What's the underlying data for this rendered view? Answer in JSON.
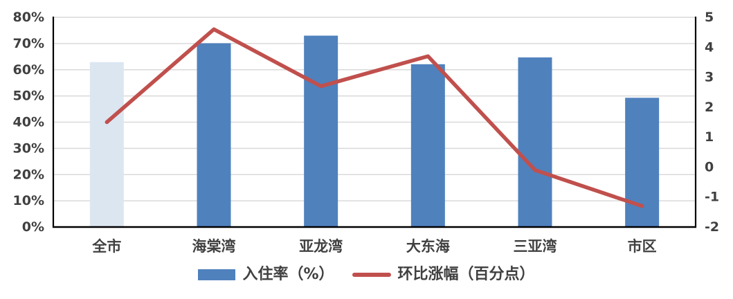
{
  "chart_data": {
    "type": "bar+line combo",
    "categories": [
      "全市",
      "海棠湾",
      "亚龙湾",
      "大东海",
      "三亚湾",
      "市区"
    ],
    "series": [
      {
        "name": "入住率（%）",
        "type": "bar",
        "axis": "left",
        "values": [
          62.9,
          70.1,
          73.0,
          62.1,
          64.7,
          49.3
        ],
        "colors": [
          "#DCE6F1",
          "#4F81BD",
          "#4F81BD",
          "#4F81BD",
          "#4F81BD",
          "#4F81BD"
        ]
      },
      {
        "name": "环比涨幅（百分点）",
        "type": "line",
        "axis": "right",
        "color": "#C0504D",
        "values": [
          1.5,
          4.6,
          2.7,
          3.7,
          -0.1,
          -1.3
        ]
      }
    ],
    "left_axis": {
      "min": 0,
      "max": 80,
      "step": 10,
      "tick_labels": [
        "0%",
        "10%",
        "20%",
        "30%",
        "40%",
        "50%",
        "60%",
        "70%",
        "80%"
      ]
    },
    "right_axis": {
      "min": -2,
      "max": 5,
      "step": 1,
      "tick_labels": [
        "-2",
        "-1",
        "0",
        "1",
        "2",
        "3",
        "4",
        "5"
      ]
    },
    "grid": true,
    "legend_position": "bottom",
    "title": ""
  },
  "styles": {
    "bar_color": "#4F81BD",
    "bar_color_first": "#DCE6F1",
    "line_color": "#C0504D",
    "grid_color": "#D9D9D9",
    "axis_line_color": "#000000",
    "label_color": "#404040"
  }
}
